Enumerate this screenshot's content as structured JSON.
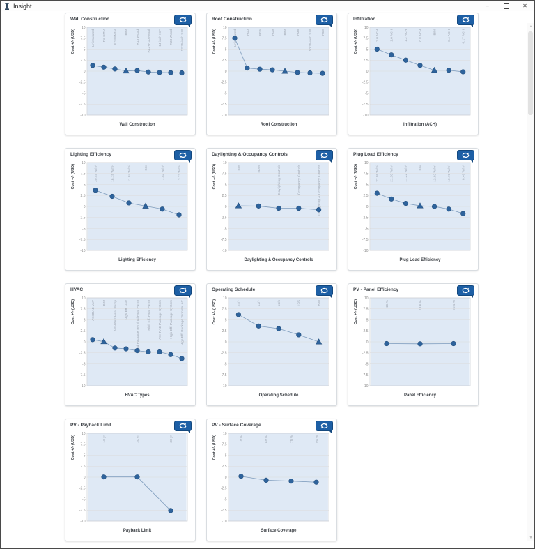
{
  "window": {
    "title": "Insight",
    "minimize_label": "–",
    "close_label": "✕"
  },
  "colors": {
    "accent_blue": "#1d5fa5",
    "point_blue": "#2e639c",
    "point_stroke": "#24507f",
    "band_blue": "#dfe9f5",
    "grid_gray": "#dcdcdc",
    "tick_gray": "#8c8c8c",
    "category_gray": "#a0a8b4",
    "line_blue": "#7e9cbd"
  },
  "y_axis": {
    "label": "Cost +/- (USD)",
    "max": 10,
    "min": -10,
    "ticks": [
      10,
      7.5,
      5,
      2.5,
      0,
      -2.5,
      -5,
      -7.5,
      -10
    ]
  },
  "chart_data": [
    {
      "type": "line",
      "title": "Wall Construction",
      "xlabel": "Wall Construction",
      "ylabel": "Cost +/- (USD)",
      "ylim": [
        -10,
        10
      ],
      "bim_index": 3,
      "categories": [
        "Uninsulated",
        "R2 CMU",
        "R13 Metal",
        "BIM",
        "R13 Wood",
        "R13+R10 Metal",
        "14-inch ICF",
        "R38 Wood",
        "12.25-inch SIP"
      ],
      "values": [
        1.3,
        0.9,
        0.5,
        0.05,
        0.15,
        -0.2,
        -0.3,
        -0.35,
        -0.4
      ]
    },
    {
      "type": "line",
      "title": "Roof Construction",
      "xlabel": "Roof Construction",
      "ylabel": "Cost +/- (USD)",
      "ylim": [
        -10,
        10
      ],
      "bim_index": 4,
      "categories": [
        "Uninsulated",
        "R10",
        "R15",
        "R19",
        "BIM",
        "R38",
        "10.25-inch SIP",
        "R60"
      ],
      "values": [
        7.5,
        0.7,
        0.45,
        0.3,
        0.0,
        -0.3,
        -0.4,
        -0.5
      ]
    },
    {
      "type": "line",
      "title": "Infiltration",
      "xlabel": "Infiltration (ACH)",
      "ylabel": "Cost +/- (USD)",
      "ylim": [
        -10,
        10
      ],
      "bim_index": 4,
      "categories": [
        "2.0 ACH",
        "1.6 ACH",
        "1.2 ACH",
        "0.8 ACH",
        "BIM",
        "0.4 ACH",
        "0.17 ACH"
      ],
      "values": [
        5.0,
        3.7,
        2.5,
        1.3,
        0.2,
        0.2,
        -0.15
      ]
    },
    {
      "type": "line",
      "title": "Lighting Efficiency",
      "xlabel": "Lighting Efficiency",
      "ylabel": "Cost +/- (USD)",
      "ylim": [
        -10,
        10
      ],
      "bim_index": 3,
      "categories": [
        "20.45 W/m²",
        "16.15 W/m²",
        "11.84 W/m²",
        "BIM",
        "7.53 W/m²",
        "3.23 W/m²"
      ],
      "values": [
        3.7,
        2.3,
        0.8,
        0.1,
        -0.6,
        -1.9
      ]
    },
    {
      "type": "line",
      "title": "Daylighting & Occupancy Controls",
      "xlabel": "Daylighting & Occupancy Controls",
      "ylabel": "Cost +/- (USD)",
      "ylim": [
        -10,
        10
      ],
      "bim_index": 0,
      "categories": [
        "BIM",
        "None",
        "Daylighting Controls",
        "Occupancy Controls",
        "Daylighting & Occupancy Controls"
      ],
      "values": [
        0.15,
        0.1,
        -0.4,
        -0.4,
        -0.75
      ]
    },
    {
      "type": "line",
      "title": "Plug Load Efficiency",
      "xlabel": "Plug Load Efficiency",
      "ylabel": "Cost +/- (USD)",
      "ylim": [
        -10,
        10
      ],
      "bim_index": 3,
      "categories": [
        "27.99 W/m²",
        "21.53 W/m²",
        "17.22 W/m²",
        "BIM",
        "12.92 W/m²",
        "10.76 W/m²",
        "6.46 W/m²"
      ],
      "values": [
        3.0,
        1.7,
        0.7,
        0.15,
        0.0,
        -0.6,
        -1.6
      ]
    },
    {
      "type": "line",
      "title": "HVAC",
      "xlabel": "HVAC Types",
      "ylabel": "Cost +/- (USD)",
      "ylim": [
        -10,
        10
      ],
      "bim_index": 1,
      "categories": [
        "ASHRAE VAV",
        "BIM",
        "ASHRAE Heat Pump",
        "High Eff. VAV",
        "Std Package Terminal Heat Pump",
        "High Eff. Heat Pump",
        "ASHRAE Package System",
        "High Eff. Package System",
        "High Eff. Package Terminal AC"
      ],
      "values": [
        0.5,
        0.05,
        -1.4,
        -1.6,
        -2.0,
        -2.3,
        -2.3,
        -2.9,
        -3.8
      ]
    },
    {
      "type": "line",
      "title": "Operating Schedule",
      "xlabel": "Operating Schedule",
      "ylabel": "Cost +/- (USD)",
      "ylim": [
        -10,
        10
      ],
      "bim_index": 4,
      "categories": [
        "24/7",
        "12/7",
        "12/6",
        "12/5",
        "BIM"
      ],
      "values": [
        6.2,
        3.6,
        3.0,
        1.6,
        0.0
      ]
    },
    {
      "type": "line",
      "title": "PV - Panel Efficiency",
      "xlabel": "Panel Efficiency",
      "ylabel": "Cost +/- (USD)",
      "ylim": [
        -10,
        10
      ],
      "bim_index": null,
      "categories": [
        "16 %",
        "18.6 %",
        "20.4 %"
      ],
      "values": [
        -0.4,
        -0.45,
        -0.4
      ]
    },
    {
      "type": "line",
      "title": "PV - Payback Limit",
      "xlabel": "Payback Limit",
      "ylabel": "Cost +/- (USD)",
      "ylim": [
        -10,
        10
      ],
      "bim_index": null,
      "categories": [
        "10 yr",
        "20 yr",
        "30 yr"
      ],
      "values": [
        0.05,
        0.05,
        -7.6
      ]
    },
    {
      "type": "line",
      "title": "PV - Surface Coverage",
      "xlabel": "Surface Coverage",
      "ylabel": "Cost +/- (USD)",
      "ylim": [
        -10,
        10
      ],
      "bim_index": null,
      "categories": [
        "0 %",
        "60 %",
        "75 %",
        "90 %"
      ],
      "values": [
        0.2,
        -0.7,
        -0.9,
        -1.15
      ]
    }
  ]
}
